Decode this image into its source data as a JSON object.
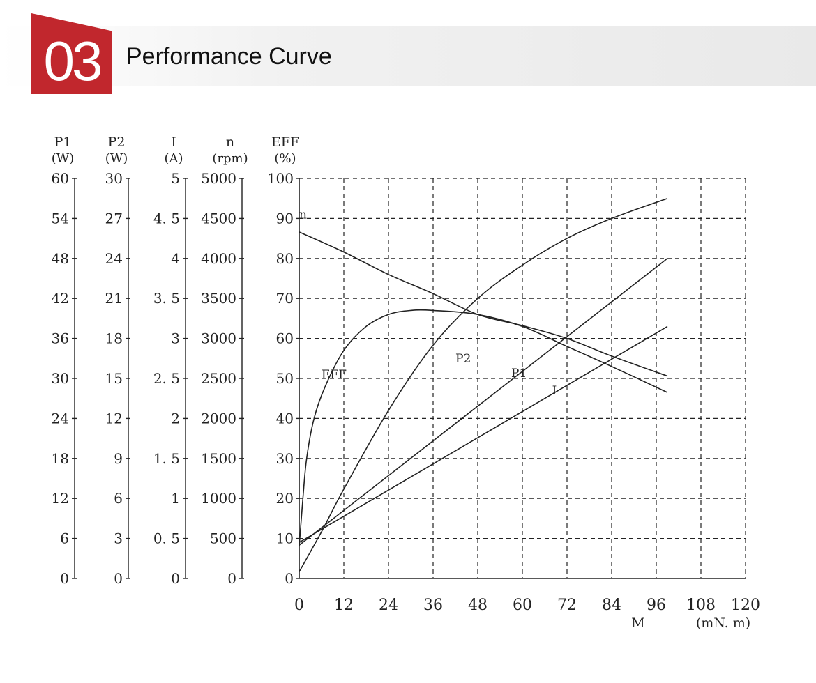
{
  "header": {
    "number": "03",
    "title": "Performance Curve",
    "accent_color": "#c1272d"
  },
  "chart_data": {
    "type": "line",
    "title": "",
    "xlabel": "M",
    "xunit": "(mN. m)",
    "xlim": [
      0,
      120
    ],
    "x_ticks": [
      "0",
      "12",
      "24",
      "36",
      "48",
      "60",
      "72",
      "84",
      "96",
      "108",
      "120"
    ],
    "grid": true,
    "axes": [
      {
        "id": "P1",
        "name": "P1",
        "unit": "(W)",
        "range": [
          0,
          60
        ],
        "ticks": [
          "0",
          "6",
          "12",
          "18",
          "24",
          "30",
          "36",
          "42",
          "48",
          "54",
          "60"
        ]
      },
      {
        "id": "P2",
        "name": "P2",
        "unit": "(W)",
        "range": [
          0,
          30
        ],
        "ticks": [
          "0",
          "3",
          "6",
          "9",
          "12",
          "15",
          "18",
          "21",
          "24",
          "27",
          "30"
        ]
      },
      {
        "id": "I",
        "name": "I",
        "unit": "(A)",
        "range": [
          0,
          5
        ],
        "ticks": [
          "0",
          "0. 5",
          "1",
          "1. 5",
          "2",
          "2. 5",
          "3",
          "3. 5",
          "4",
          "4. 5",
          "5"
        ]
      },
      {
        "id": "n",
        "name": "n",
        "unit": "(rpm)",
        "range": [
          0,
          5000
        ],
        "ticks": [
          "0",
          "500",
          "1000",
          "1500",
          "2000",
          "2500",
          "3000",
          "3500",
          "4000",
          "4500",
          "5000"
        ]
      },
      {
        "id": "EFF",
        "name": "EFF",
        "unit": "(%)",
        "range": [
          0,
          100
        ],
        "ticks": [
          "0",
          "10",
          "20",
          "30",
          "40",
          "50",
          "60",
          "70",
          "80",
          "90",
          "100"
        ]
      }
    ],
    "series": [
      {
        "name": "n",
        "axis": "n",
        "label_at": [
          0,
          4500
        ],
        "points": [
          [
            0,
            4330
          ],
          [
            12,
            4080
          ],
          [
            24,
            3800
          ],
          [
            36,
            3560
          ],
          [
            48,
            3300
          ],
          [
            60,
            3160
          ],
          [
            72,
            3000
          ],
          [
            84,
            2780
          ],
          [
            99,
            2530
          ]
        ]
      },
      {
        "name": "EFF",
        "axis": "EFF",
        "label_at": [
          6,
          50
        ],
        "points": [
          [
            0,
            8
          ],
          [
            1,
            20
          ],
          [
            2,
            30
          ],
          [
            4,
            40
          ],
          [
            7,
            48
          ],
          [
            12,
            57
          ],
          [
            18,
            63
          ],
          [
            24,
            66
          ],
          [
            30,
            67
          ],
          [
            36,
            67
          ],
          [
            48,
            66
          ],
          [
            60,
            63
          ],
          [
            72,
            58
          ],
          [
            84,
            53
          ],
          [
            99,
            46.5
          ]
        ]
      },
      {
        "name": "P2",
        "axis": "P2",
        "label_at": [
          42,
          16.2
        ],
        "points": [
          [
            0,
            0.5
          ],
          [
            6,
            3.5
          ],
          [
            12,
            6.7
          ],
          [
            24,
            12.6
          ],
          [
            36,
            17.5
          ],
          [
            48,
            21
          ],
          [
            60,
            23.5
          ],
          [
            72,
            25.5
          ],
          [
            84,
            27
          ],
          [
            99,
            28.5
          ]
        ]
      },
      {
        "name": "P1",
        "axis": "P1",
        "label_at": [
          57,
          30.2
        ],
        "points": [
          [
            0,
            5
          ],
          [
            99,
            48
          ]
        ]
      },
      {
        "name": "I",
        "axis": "I",
        "label_at": [
          68,
          2.3
        ],
        "points": [
          [
            0,
            0.45
          ],
          [
            99,
            3.15
          ]
        ]
      }
    ]
  }
}
